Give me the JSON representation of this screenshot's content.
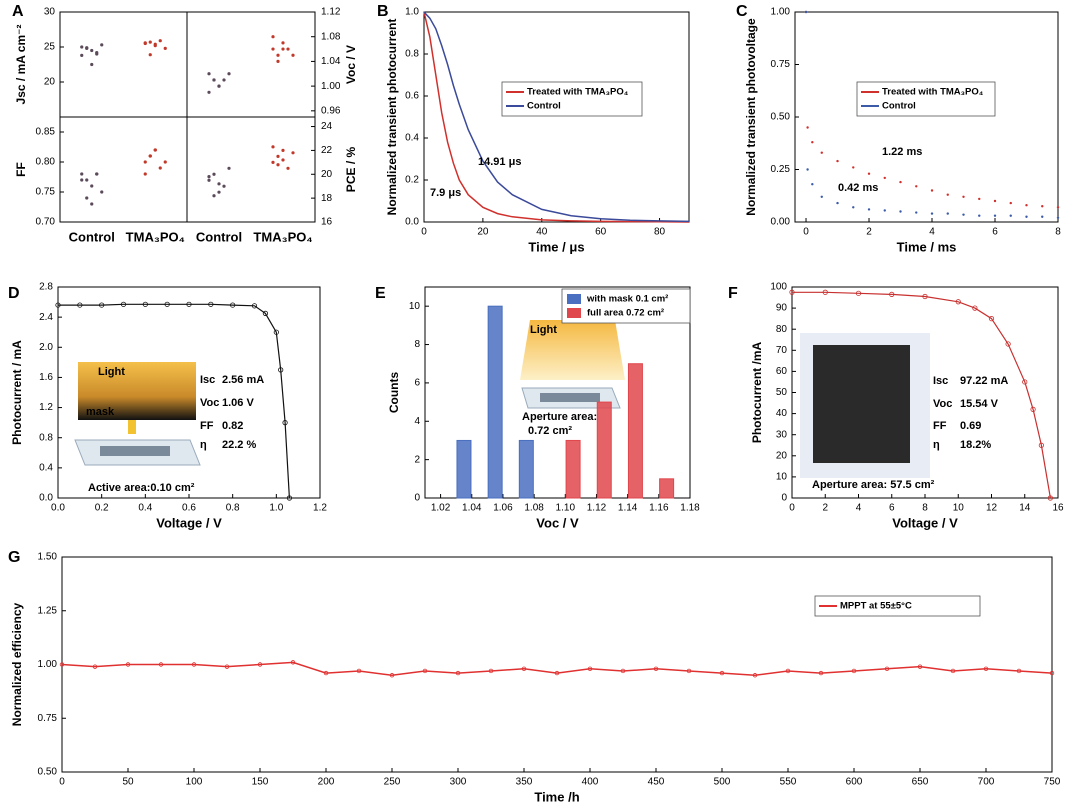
{
  "chart_data": [
    {
      "type": "strip",
      "panel": "A",
      "ylabel": "Jsc / mA cm⁻²",
      "categories": [
        null,
        null
      ],
      "colors": [
        "#5a4a5a",
        "#c0392b"
      ],
      "values": [
        [
          25,
          24.8,
          24.5,
          24.2,
          25.3,
          23.8,
          24.9,
          22.5,
          24
        ],
        [
          25.5,
          25.7,
          25.2,
          25.9,
          24.8,
          25.6,
          23.9,
          25.4
        ]
      ],
      "ylim": [
        15,
        30
      ],
      "yticks": [
        20,
        25,
        30
      ]
    },
    {
      "type": "strip",
      "ylabel": "Voc / V",
      "categories": [
        null,
        null
      ],
      "colors": [
        "#5a4a5a",
        "#c0392b"
      ],
      "values": [
        [
          1.02,
          1.01,
          1.0,
          1.01,
          1.02,
          0.99,
          1.01,
          1.0
        ],
        [
          1.06,
          1.05,
          1.07,
          1.06,
          1.05,
          1.08,
          1.04,
          1.06
        ]
      ],
      "ylim": [
        0.95,
        1.12
      ],
      "yticks": [
        0.96,
        {
          "value": 1,
          "label": "1.00"
        },
        1.04,
        1.08,
        1.12
      ]
    },
    {
      "type": "strip",
      "ylabel": "FF",
      "categories": [
        "Control",
        "TMA₃PO₄"
      ],
      "colors": [
        "#5a4a5a",
        "#c0392b"
      ],
      "values": [
        [
          0.78,
          0.77,
          0.76,
          0.78,
          0.75,
          0.77,
          0.74,
          0.73,
          0.78
        ],
        [
          0.8,
          0.81,
          0.82,
          0.79,
          0.8,
          0.78,
          0.81,
          0.82
        ]
      ],
      "ylim": [
        0.7,
        0.875
      ],
      "yticks": [
        {
          "value": 0.7,
          "label": "0.70"
        },
        0.75,
        {
          "value": 0.8,
          "label": "0.80"
        },
        0.85
      ]
    },
    {
      "type": "strip",
      "ylabel": "PCE / %",
      "categories": [
        "Control",
        "TMA₃PO₄"
      ],
      "colors": [
        "#5a4a5a",
        "#c0392b"
      ],
      "values": [
        [
          19.5,
          20,
          18.5,
          19,
          20.5,
          19.8,
          18.2,
          19.2
        ],
        [
          21,
          21.5,
          22,
          20.5,
          21.8,
          22.3,
          20.8,
          21.2
        ]
      ],
      "ylim": [
        16,
        24.8
      ],
      "yticks": [
        16,
        18,
        20,
        22,
        24
      ]
    },
    {
      "type": "line",
      "panel": "B",
      "xlabel": "Time / μs",
      "ylabel": "Normalized transient photocurrent",
      "x": [
        0,
        2,
        4,
        6,
        8,
        10,
        12,
        15,
        20,
        25,
        30,
        40,
        50,
        60,
        70,
        80,
        90
      ],
      "series": [
        {
          "name": "Treated with TMA₃PO₄",
          "color": "#d0312d",
          "values": [
            1.0,
            0.88,
            0.7,
            0.52,
            0.38,
            0.28,
            0.2,
            0.13,
            0.07,
            0.04,
            0.025,
            0.01,
            0.005,
            0.003,
            0.002,
            0.001,
            0
          ]
        },
        {
          "name": "Control",
          "color": "#3b4a9a",
          "values": [
            1.0,
            0.97,
            0.92,
            0.84,
            0.75,
            0.65,
            0.56,
            0.44,
            0.29,
            0.19,
            0.13,
            0.06,
            0.03,
            0.015,
            0.008,
            0.005,
            0.003
          ]
        }
      ],
      "xlim": [
        0,
        90
      ],
      "xticks": [
        0,
        20,
        40,
        60,
        80
      ],
      "ylim": [
        0,
        1
      ],
      "yticks": [
        {
          "value": 0,
          "label": "0.0"
        },
        0.2,
        0.4,
        0.6,
        0.8,
        {
          "value": 1,
          "label": "1.0"
        }
      ],
      "annotations": [
        "14.91 μs",
        "7.9 μs"
      ]
    },
    {
      "type": "scatter",
      "panel": "C",
      "xlabel": "Time / ms",
      "ylabel": "Normalized transient photovoltage",
      "x": [
        0,
        0.05,
        0.2,
        0.5,
        1,
        1.5,
        2,
        2.5,
        3,
        3.5,
        4,
        4.5,
        5,
        5.5,
        6,
        6.5,
        7,
        7.5,
        8
      ],
      "series": [
        {
          "name": "Treated with TMA₃PO₄",
          "color": "#d0312d",
          "values": [
            1.0,
            0.45,
            0.38,
            0.33,
            0.29,
            0.26,
            0.23,
            0.21,
            0.19,
            0.17,
            0.15,
            0.13,
            0.12,
            0.11,
            0.1,
            0.09,
            0.08,
            0.075,
            0.07
          ]
        },
        {
          "name": "Control",
          "color": "#3b5aa8",
          "values": [
            1.0,
            0.25,
            0.18,
            0.12,
            0.09,
            0.07,
            0.06,
            0.055,
            0.05,
            0.045,
            0.04,
            0.04,
            0.035,
            0.03,
            0.03,
            0.03,
            0.025,
            0.025,
            0.02
          ]
        }
      ],
      "xlim": [
        -0.35,
        8
      ],
      "xticks": [
        0,
        2,
        4,
        6,
        8
      ],
      "ylim": [
        0,
        1
      ],
      "yticks": [
        {
          "value": 0,
          "label": "0.00"
        },
        0.25,
        {
          "value": 0.5,
          "label": "0.50"
        },
        0.75,
        {
          "value": 1,
          "label": "1.00"
        }
      ],
      "annotations": [
        "1.22 ms",
        "0.42 ms"
      ]
    },
    {
      "type": "line",
      "panel": "D",
      "xlabel": "Voltage / V",
      "ylabel": "Photocurrent / mA",
      "x": [
        0,
        0.1,
        0.2,
        0.3,
        0.4,
        0.5,
        0.6,
        0.7,
        0.8,
        0.9,
        0.95,
        1.0,
        1.02,
        1.04,
        1.06
      ],
      "series": [
        {
          "color": "#111111",
          "values": [
            2.56,
            2.56,
            2.56,
            2.57,
            2.57,
            2.57,
            2.57,
            2.57,
            2.56,
            2.55,
            2.45,
            2.2,
            1.7,
            1.0,
            0
          ]
        }
      ],
      "xlim": [
        0,
        1.2
      ],
      "xticks": [
        {
          "value": 0,
          "label": "0.0"
        },
        0.2,
        0.4,
        0.6,
        0.8,
        {
          "value": 1,
          "label": "1.0"
        },
        1.2
      ],
      "ylim": [
        0,
        2.8
      ],
      "yticks": [
        {
          "value": 0,
          "label": "0.0"
        },
        0.4,
        0.8,
        1.2,
        1.6,
        {
          "value": 2,
          "label": "2.0"
        },
        2.4,
        2.8
      ],
      "annotations": [
        "Isc",
        "2.56 mA",
        "Voc",
        "1.06 V",
        "FF",
        "0.82",
        "η",
        "22.2 %",
        "Light",
        "mask",
        "Active area:0.10 cm²"
      ]
    },
    {
      "type": "bar",
      "panel": "E",
      "xlabel": "Voc / V",
      "ylabel": "Counts",
      "series": [
        {
          "name": "with mask 0.1 cm²",
          "color": "#4a6fc0",
          "x": [
            1.035,
            1.055,
            1.075
          ],
          "values": [
            3,
            10,
            3
          ]
        },
        {
          "name": "full area 0.72 cm²",
          "color": "#e0474c",
          "x": [
            1.105,
            1.125,
            1.145,
            1.165
          ],
          "values": [
            3,
            5,
            7,
            1
          ]
        }
      ],
      "xlim": [
        1.01,
        1.18
      ],
      "xticks": [
        1.02,
        1.04,
        1.06,
        1.08,
        {
          "value": 1.1,
          "label": "1.10"
        },
        1.12,
        1.14,
        1.16,
        1.18
      ],
      "ylim": [
        0,
        11
      ],
      "yticks": [
        0,
        2,
        4,
        6,
        8,
        10
      ],
      "annotations": [
        "Light",
        "Aperture area:",
        "0.72 cm²"
      ]
    },
    {
      "type": "line",
      "panel": "F",
      "xlabel": "Voltage / V",
      "ylabel": "Photocurrent /mA",
      "x": [
        0,
        2,
        4,
        6,
        8,
        10,
        11,
        12,
        13,
        14,
        14.5,
        15,
        15.54
      ],
      "series": [
        {
          "color": "#c8302f",
          "values": [
            97.5,
            97.5,
            97,
            96.5,
            95.5,
            93,
            90,
            85,
            73,
            55,
            42,
            25,
            0
          ]
        }
      ],
      "xlim": [
        0,
        16
      ],
      "xticks": [
        0,
        2,
        4,
        6,
        8,
        10,
        12,
        14,
        16
      ],
      "ylim": [
        0,
        100
      ],
      "yticks": [
        0,
        10,
        20,
        30,
        40,
        50,
        60,
        70,
        80,
        90,
        100
      ],
      "annotations": [
        "Isc",
        "97.22 mA",
        "Voc",
        "15.54 V",
        "FF",
        "0.69",
        "η",
        "18.2%",
        "Aperture area: 57.5 cm²"
      ]
    },
    {
      "type": "line",
      "panel": "G",
      "xlabel": "Time /h",
      "ylabel": "Normalized efficiency",
      "x": [
        0,
        25,
        50,
        75,
        100,
        125,
        150,
        175,
        200,
        225,
        250,
        275,
        300,
        325,
        350,
        375,
        400,
        425,
        450,
        475,
        500,
        525,
        550,
        575,
        600,
        625,
        650,
        675,
        700,
        725,
        750
      ],
      "series": [
        {
          "name": "MPPT at 55±5°C",
          "color": "#e03030",
          "values": [
            1.0,
            0.99,
            1.0,
            1.0,
            1.0,
            0.99,
            1.0,
            1.01,
            0.96,
            0.97,
            0.95,
            0.97,
            0.96,
            0.97,
            0.98,
            0.96,
            0.98,
            0.97,
            0.98,
            0.97,
            0.96,
            0.95,
            0.97,
            0.96,
            0.97,
            0.98,
            0.99,
            0.97,
            0.98,
            0.97,
            0.96
          ]
        }
      ],
      "xlim": [
        0,
        750
      ],
      "xticks": [
        0,
        50,
        100,
        150,
        200,
        250,
        300,
        350,
        400,
        450,
        500,
        550,
        600,
        650,
        700,
        750
      ],
      "ylim": [
        0.5,
        1.5
      ],
      "yticks": [
        {
          "value": 0.5,
          "label": "0.50"
        },
        0.75,
        {
          "value": 1,
          "label": "1.00"
        },
        1.25,
        {
          "value": 1.5,
          "label": "1.50"
        }
      ]
    }
  ]
}
